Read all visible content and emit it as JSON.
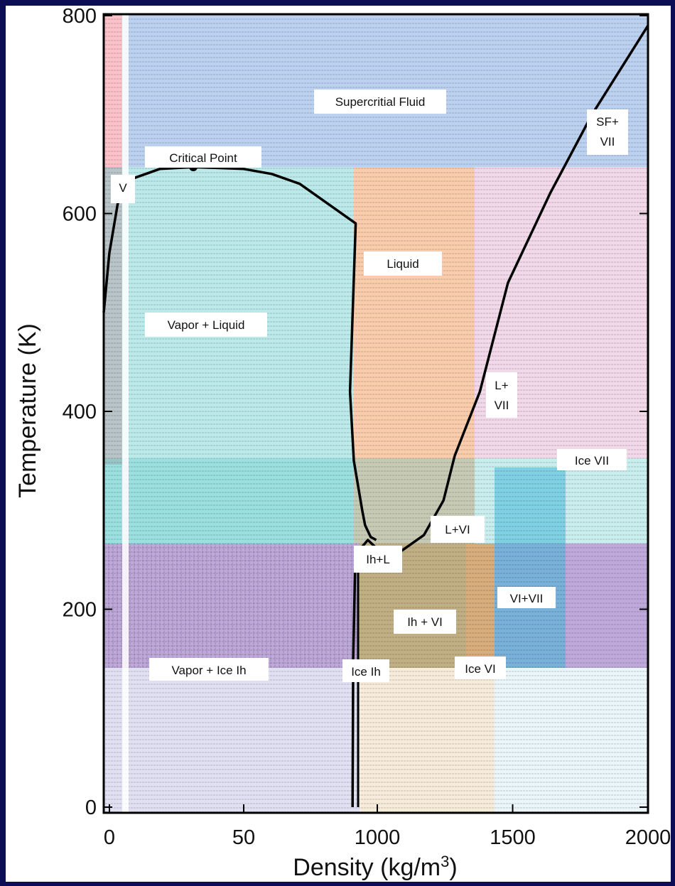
{
  "colors": {
    "vapor": "#f05060",
    "vapor_liquid": "#50c8c8",
    "liquid": "#f08030",
    "supercritical": "#3070d0",
    "ice_vii": "#c050a0",
    "vapor_ice": "#7040b0",
    "ice_ih": "#6050a0",
    "ih_vi": "#c0b060",
    "ice_vi": "#e8b040",
    "vi_vii": "#40b8d8",
    "low_t_band": "#9090d0",
    "boundary": "#000000",
    "frame": "#0d0d55"
  },
  "chart_data": {
    "type": "line",
    "xlabel": "Density (kg/m",
    "xlabel_sup": "3",
    "xlabel_end": ")",
    "ylabel": "Temperature (K)",
    "xlim": [
      0,
      2000
    ],
    "ylim": [
      0,
      800
    ],
    "x_ticks": [
      {
        "value": 0,
        "label": "0"
      },
      {
        "value": 50,
        "label": "50"
      },
      {
        "value": 1000,
        "label": "1000"
      },
      {
        "value": 1500,
        "label": "1500"
      },
      {
        "value": 2000,
        "label": "2000"
      }
    ],
    "y_ticks": [
      {
        "value": 0,
        "label": "0"
      },
      {
        "value": 200,
        "label": "200"
      },
      {
        "value": 400,
        "label": "400"
      },
      {
        "value": 600,
        "label": "600"
      },
      {
        "value": 800,
        "label": "800"
      }
    ],
    "grid": false,
    "series": [
      {
        "id": "vapor-liquid-dome",
        "x": [
          0,
          2,
          5,
          10,
          20,
          32,
          50,
          60,
          70,
          80,
          90,
          920,
          950,
          980,
          990,
          1010,
          1030
        ],
        "y": [
          500,
          560,
          610,
          635,
          645,
          647,
          645,
          640,
          630,
          610,
          590,
          420,
          350,
          300,
          285,
          273,
          270
        ]
      },
      {
        "id": "ice-vii-melting-curve",
        "x": [
          1310,
          1400,
          1500,
          1650,
          1800,
          1900,
          2000
        ],
        "y": [
          355,
          420,
          530,
          620,
          700,
          745,
          790
        ]
      },
      {
        "id": "ice-vi-liquid-boundary",
        "x": [
          1100,
          1200,
          1270,
          1310
        ],
        "y": [
          255,
          275,
          310,
          355
        ]
      },
      {
        "id": "ice-ih-boundary",
        "x": [
          940,
          945,
          955,
          970,
          1000,
          1030,
          1060,
          1100
        ],
        "y": [
          0,
          150,
          250,
          260,
          270,
          262,
          258,
          255
        ]
      }
    ],
    "points": [
      {
        "name": "Critical Point",
        "x": 32,
        "y": 647
      }
    ],
    "annotations": [
      "Supercritial Fluid",
      "SF+",
      "VII",
      "Critical Point",
      "V",
      "Liquid",
      "Vapor + Liquid",
      "L+",
      "VII",
      "Ice VII",
      "L+VI",
      "Ih+L",
      "VI+VII",
      "Ih + VI",
      "Vapor + Ice Ih",
      "Ice Ih",
      "Ice VI"
    ]
  }
}
